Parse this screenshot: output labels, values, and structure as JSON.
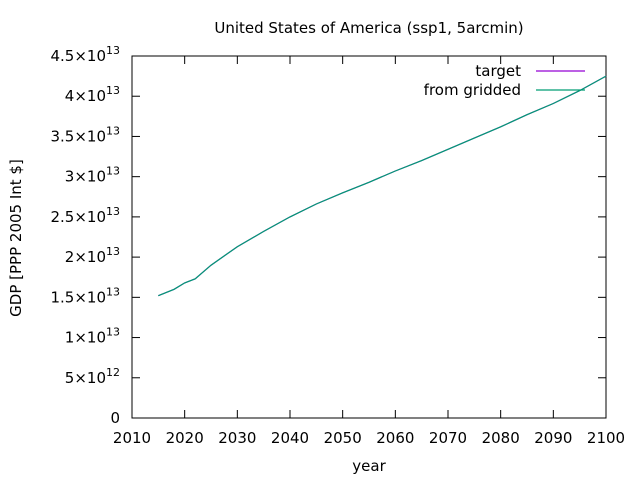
{
  "chart_data": {
    "type": "line",
    "title": "United States of America (ssp1, 5arcmin)",
    "xlabel": "year",
    "ylabel": "GDP [PPP 2005 Int $]",
    "xlim": [
      2010,
      2100
    ],
    "ylim": [
      0,
      45000000000000
    ],
    "x_ticks": [
      2010,
      2020,
      2030,
      2040,
      2050,
      2060,
      2070,
      2080,
      2090,
      2100
    ],
    "y_ticks": [
      {
        "value": 0,
        "mant": "0",
        "exp": ""
      },
      {
        "value": 5000000000000,
        "mant": "5×10",
        "exp": "12"
      },
      {
        "value": 10000000000000,
        "mant": "1×10",
        "exp": "13"
      },
      {
        "value": 15000000000000,
        "mant": "1.5×10",
        "exp": "13"
      },
      {
        "value": 20000000000000,
        "mant": "2×10",
        "exp": "13"
      },
      {
        "value": 25000000000000,
        "mant": "2.5×10",
        "exp": "13"
      },
      {
        "value": 30000000000000,
        "mant": "3×10",
        "exp": "13"
      },
      {
        "value": 35000000000000,
        "mant": "3.5×10",
        "exp": "13"
      },
      {
        "value": 40000000000000,
        "mant": "4×10",
        "exp": "13"
      },
      {
        "value": 45000000000000,
        "mant": "4.5×10",
        "exp": "13"
      }
    ],
    "grid": false,
    "legend_position": "top-right",
    "series": [
      {
        "name": "target",
        "color": "#9400d3",
        "x": [
          2015,
          2018,
          2020,
          2022,
          2025,
          2030,
          2035,
          2040,
          2045,
          2050,
          2055,
          2060,
          2065,
          2070,
          2075,
          2080,
          2085,
          2090,
          2095,
          2100
        ],
        "y": [
          15200000000000,
          16000000000000,
          16800000000000,
          17300000000000,
          19000000000000,
          21300000000000,
          23200000000000,
          25000000000000,
          26600000000000,
          28000000000000,
          29300000000000,
          30700000000000,
          32000000000000,
          33400000000000,
          34800000000000,
          36200000000000,
          37700000000000,
          39100000000000,
          40700000000000,
          42500000000000
        ]
      },
      {
        "name": "from gridded",
        "color": "#009e73",
        "x": [
          2015,
          2018,
          2020,
          2022,
          2025,
          2030,
          2035,
          2040,
          2045,
          2050,
          2055,
          2060,
          2065,
          2070,
          2075,
          2080,
          2085,
          2090,
          2095,
          2100
        ],
        "y": [
          15200000000000,
          16000000000000,
          16800000000000,
          17300000000000,
          19000000000000,
          21300000000000,
          23200000000000,
          25000000000000,
          26600000000000,
          28000000000000,
          29300000000000,
          30700000000000,
          32000000000000,
          33400000000000,
          34800000000000,
          36200000000000,
          37700000000000,
          39100000000000,
          40700000000000,
          42500000000000
        ]
      }
    ]
  }
}
